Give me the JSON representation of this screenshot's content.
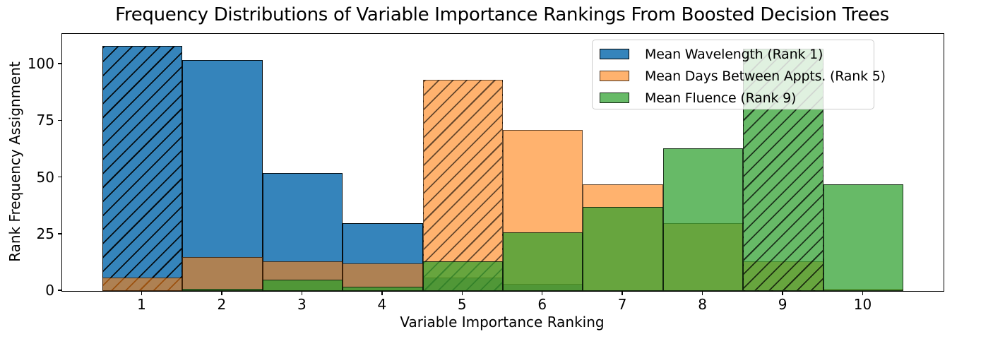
{
  "chart_data": {
    "type": "bar",
    "subtype": "overlapping-histogram",
    "title": "Frequency Distributions of Variable Importance Rankings From Boosted Decision Trees",
    "xlabel": "Variable Importance Ranking",
    "ylabel": "Rank Frequency Assignment",
    "categories": [
      1,
      2,
      3,
      4,
      5,
      6,
      7,
      8,
      9,
      10
    ],
    "xticks": [
      1,
      2,
      3,
      4,
      5,
      6,
      7,
      8,
      9,
      10
    ],
    "yticks": [
      0,
      25,
      50,
      75,
      100
    ],
    "xlim": [
      0,
      11
    ],
    "ylim": [
      0,
      113.4
    ],
    "bin_width": 1,
    "grid": false,
    "legend_position": "upper right",
    "series": [
      {
        "name": "Mean Wavelength (Rank 1)",
        "color": "#1f77b4",
        "alpha": 0.9,
        "hatched_category": 1,
        "hatch": "/",
        "values": [
          108,
          102,
          52,
          30,
          6,
          3,
          0,
          0,
          0,
          0
        ]
      },
      {
        "name": "Mean Days Between Appts. (Rank 5)",
        "color": "#ff7f0e",
        "alpha": 0.6,
        "hatched_category": 5,
        "hatch": "/",
        "values": [
          6,
          15,
          13,
          12,
          93,
          71,
          47,
          30,
          13,
          1
        ]
      },
      {
        "name": "Mean Fluence (Rank 9)",
        "color": "#2ca02c",
        "alpha": 0.72,
        "hatched_category": 9,
        "hatch": "/",
        "values": [
          0,
          1,
          5,
          2,
          13,
          26,
          37,
          63,
          107,
          47
        ]
      }
    ],
    "edge_color": "#000000",
    "background_color": "#ffffff"
  }
}
